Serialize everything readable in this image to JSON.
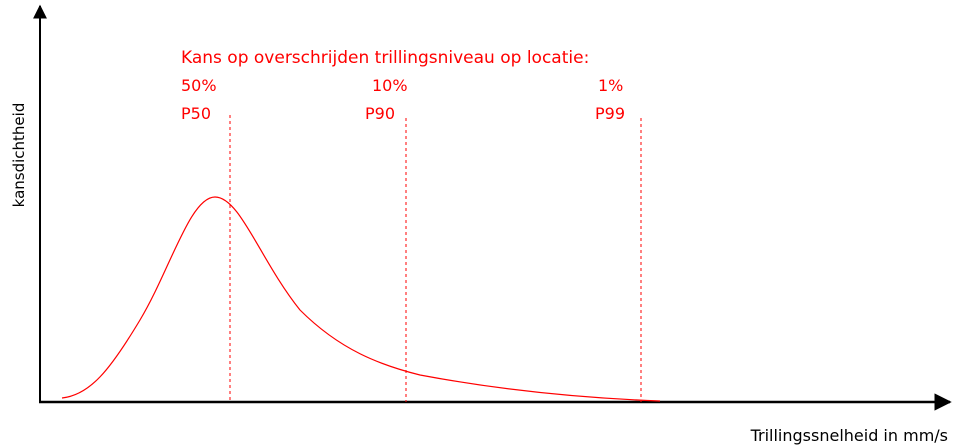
{
  "title": "Kans op overschrijden trillingsniveau op locatie:",
  "levels": [
    {
      "percent": "50%",
      "label": "P50"
    },
    {
      "percent": "10%",
      "label": "P90"
    },
    {
      "percent": "1%",
      "label": "P99"
    }
  ],
  "y_axis_label": "kansdichtheid",
  "x_axis_label": "Trillingssnelheid in mm/s"
}
